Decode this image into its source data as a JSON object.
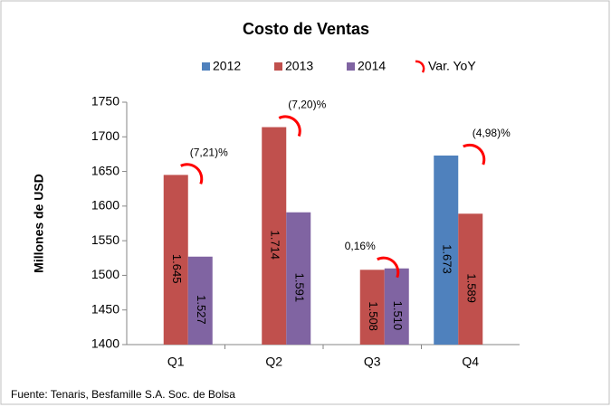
{
  "chart_data": {
    "type": "bar",
    "title": "Costo de Ventas",
    "y_label": "Millones de USD",
    "categories": [
      "Q1",
      "Q2",
      "Q3",
      "Q4"
    ],
    "series": [
      {
        "name": "2012",
        "color": "#4f81bd",
        "values": [
          null,
          null,
          null,
          1673
        ],
        "value_labels": [
          null,
          null,
          null,
          "1.673"
        ]
      },
      {
        "name": "2013",
        "color": "#c0504d",
        "values": [
          1645,
          1714,
          1508,
          1589
        ],
        "value_labels": [
          "1.645",
          "1.714",
          "1.508",
          "1.589"
        ]
      },
      {
        "name": "2014",
        "color": "#8064a2",
        "values": [
          1527,
          1591,
          1510,
          null
        ],
        "value_labels": [
          "1.527",
          "1.591",
          "1.510",
          null
        ]
      }
    ],
    "yoy": {
      "name": "Var. YoY",
      "color": "#ff0000",
      "labels": [
        "(7,21)%",
        "(7,20)%",
        "0,16%",
        "(4,98)%"
      ]
    },
    "ylim": [
      1400,
      1750
    ],
    "yticks": [
      1400,
      1450,
      1500,
      1550,
      1600,
      1650,
      1700,
      1750
    ],
    "grid": false,
    "legend": "top",
    "footnote": "Fuente: Tenaris, Besfamille S.A. Soc. de Bolsa"
  }
}
